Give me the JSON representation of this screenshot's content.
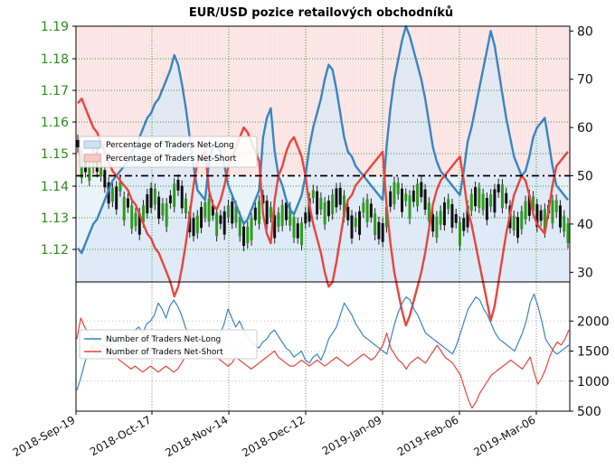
{
  "chart_data": [
    {
      "type": "line",
      "title": "EUR/USD pozice retailových obchodníků",
      "price_axis": {
        "ticks": [
          "1.19",
          "1.18",
          "1.17",
          "1.16",
          "1.15",
          "1.14",
          "1.13",
          "1.12"
        ],
        "color": "#2e8b1a"
      },
      "percent_axis": {
        "ticks": [
          "80",
          "70",
          "60",
          "50",
          "40",
          "30"
        ],
        "ylim": [
          28,
          81
        ]
      },
      "reference_line": 50,
      "grid": true,
      "legend": {
        "placement": "left",
        "items": [
          "Percentage of Traders Net-Long",
          "Percentage of Traders Net-Short"
        ]
      },
      "series": [
        {
          "name": "Percentage of Traders Net-Long",
          "color": "#3a84c1",
          "values": [
            35,
            34,
            36,
            38,
            40,
            41,
            43,
            45,
            47,
            49,
            50,
            51,
            52,
            53,
            55,
            56,
            58,
            60,
            62,
            63,
            65,
            66,
            68,
            70,
            72,
            75,
            73,
            69,
            64,
            58,
            52,
            47,
            46,
            45,
            53,
            56,
            57,
            55,
            52,
            48,
            46,
            44,
            42,
            40,
            41,
            43,
            45,
            47,
            58,
            62,
            64,
            55,
            50,
            48,
            45,
            43,
            42,
            44,
            46,
            50,
            56,
            60,
            63,
            66,
            70,
            73,
            72,
            68,
            63,
            58,
            55,
            54,
            52,
            51,
            50,
            49,
            48,
            47,
            46,
            45,
            56,
            64,
            70,
            74,
            78,
            81,
            79,
            76,
            73,
            70,
            66,
            61,
            56,
            53,
            51,
            50,
            49,
            48,
            47,
            46,
            51,
            57,
            60,
            64,
            68,
            72,
            76,
            80,
            77,
            72,
            67,
            62,
            58,
            54,
            52,
            50,
            51,
            54,
            58,
            60,
            61,
            62,
            57,
            52,
            48,
            47,
            46,
            45
          ]
        },
        {
          "name": "Percentage of Traders Net-Short",
          "color": "#e8453c",
          "values": [
            65,
            66,
            64,
            62,
            60,
            59,
            57,
            55,
            53,
            51,
            50,
            49,
            48,
            47,
            45,
            44,
            42,
            40,
            38,
            37,
            35,
            34,
            32,
            30,
            28,
            25,
            27,
            31,
            36,
            42,
            48,
            53,
            54,
            55,
            47,
            44,
            43,
            45,
            48,
            52,
            54,
            56,
            58,
            60,
            59,
            57,
            55,
            53,
            42,
            38,
            36,
            45,
            50,
            52,
            55,
            57,
            58,
            56,
            54,
            50,
            44,
            40,
            37,
            34,
            30,
            27,
            28,
            32,
            37,
            42,
            45,
            46,
            48,
            49,
            50,
            51,
            52,
            53,
            54,
            55,
            44,
            36,
            30,
            26,
            22,
            19,
            21,
            24,
            27,
            30,
            34,
            39,
            44,
            47,
            49,
            50,
            51,
            52,
            53,
            54,
            49,
            43,
            40,
            36,
            32,
            28,
            24,
            20,
            23,
            28,
            33,
            38,
            42,
            46,
            48,
            50,
            49,
            46,
            42,
            40,
            39,
            38,
            43,
            48,
            52,
            53,
            54,
            55
          ]
        }
      ]
    },
    {
      "type": "line",
      "lower_axis": {
        "ticks": [
          "2000",
          "1500",
          "1000",
          "500"
        ],
        "ylim": [
          500,
          2500
        ]
      },
      "legend": {
        "placement": "left",
        "items": [
          "Number of Traders Net-Long",
          "Number of Traders Net-Short"
        ]
      },
      "x_ticks": [
        "2018-Sep-19",
        "2018-Oct-17",
        "2018-Nov-14",
        "2018-Dec-12",
        "2019-Jan-09",
        "2019-Feb-06",
        "2019-Mar-06"
      ],
      "series": [
        {
          "name": "Number of Traders Net-Long",
          "color": "#3a84c1",
          "values": [
            850,
            1050,
            1300,
            1500,
            1600,
            1450,
            1500,
            1600,
            1550,
            1650,
            1700,
            1600,
            1750,
            1800,
            1700,
            1850,
            1900,
            1800,
            1950,
            2000,
            2100,
            2300,
            2200,
            2050,
            2250,
            2350,
            2250,
            2100,
            1900,
            1750,
            1700,
            1650,
            1600,
            1550,
            1600,
            1650,
            1700,
            1800,
            1950,
            2200,
            2050,
            1900,
            2000,
            1850,
            1750,
            1650,
            1600,
            1550,
            1650,
            1700,
            1800,
            1850,
            1750,
            1650,
            1550,
            1500,
            1400,
            1450,
            1500,
            1350,
            1300,
            1400,
            1450,
            1350,
            1500,
            1700,
            1800,
            1900,
            2100,
            2300,
            2200,
            2100,
            1950,
            1850,
            1750,
            1700,
            1650,
            1600,
            1550,
            1500,
            1450,
            1700,
            1950,
            2150,
            2300,
            2400,
            2350,
            2200,
            2100,
            1950,
            1800,
            1750,
            1700,
            1650,
            1600,
            1550,
            1500,
            1450,
            1600,
            1800,
            2000,
            2200,
            2300,
            2400,
            2350,
            2200,
            2100,
            1950,
            1800,
            1700,
            1650,
            1600,
            1550,
            1500,
            1650,
            1800,
            2000,
            2300,
            2450,
            2250,
            2000,
            1700,
            1600,
            1500,
            1450,
            1500,
            1550,
            1600
          ]
        },
        {
          "name": "Number of Traders Net-Short",
          "color": "#e8453c",
          "values": [
            1700,
            2050,
            1900,
            1800,
            1750,
            1650,
            1600,
            1550,
            1500,
            1450,
            1400,
            1350,
            1300,
            1250,
            1200,
            1250,
            1200,
            1150,
            1200,
            1250,
            1200,
            1150,
            1200,
            1250,
            1200,
            1150,
            1200,
            1300,
            1400,
            1500,
            1600,
            1550,
            1500,
            1450,
            1400,
            1450,
            1400,
            1350,
            1300,
            1250,
            1300,
            1400,
            1350,
            1300,
            1250,
            1200,
            1250,
            1300,
            1350,
            1400,
            1450,
            1500,
            1400,
            1350,
            1300,
            1250,
            1250,
            1300,
            1350,
            1300,
            1250,
            1300,
            1350,
            1300,
            1250,
            1300,
            1350,
            1400,
            1350,
            1300,
            1250,
            1300,
            1350,
            1400,
            1450,
            1400,
            1350,
            1400,
            1500,
            1600,
            1800,
            1550,
            1450,
            1350,
            1300,
            1200,
            1300,
            1350,
            1400,
            1350,
            1300,
            1400,
            1500,
            1600,
            1500,
            1400,
            1350,
            1300,
            1200,
            1100,
            900,
            700,
            550,
            650,
            800,
            900,
            1000,
            1100,
            1150,
            1200,
            1250,
            1300,
            1350,
            1300,
            1250,
            1200,
            1300,
            1400,
            1150,
            950,
            1050,
            1200,
            1400,
            1550,
            1650,
            1600,
            1700,
            1850
          ]
        }
      ]
    }
  ]
}
